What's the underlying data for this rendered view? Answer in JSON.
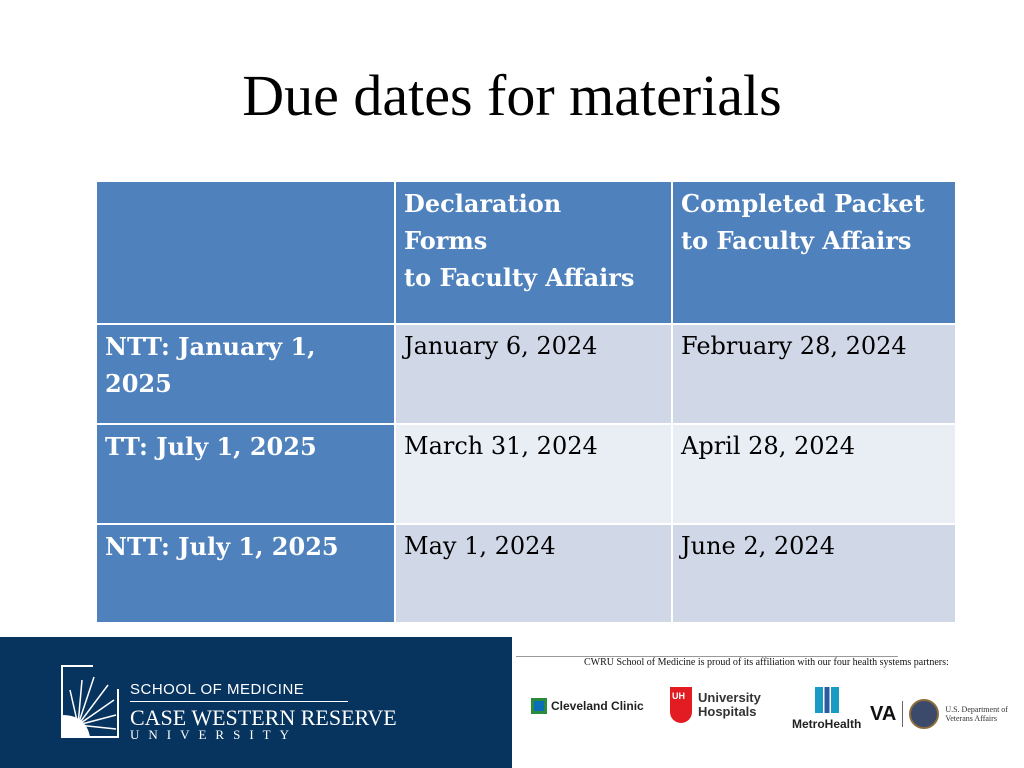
{
  "title": "Due dates for materials",
  "table": {
    "headers": [
      "",
      "Declaration Forms to Faculty Affairs",
      "Completed Packet to Faculty Affairs"
    ],
    "header_lines": {
      "declaration": [
        "Declaration",
        "Forms",
        "to Faculty Affairs"
      ],
      "packet": [
        "Completed Packet",
        "to Faculty Affairs"
      ]
    },
    "rows": [
      {
        "label": "NTT: January 1, 2025",
        "declaration": "January 6, 2024",
        "packet": "February 28, 2024"
      },
      {
        "label": "TT: July 1, 2025",
        "declaration": "March 31, 2024",
        "packet": "April 28, 2024"
      },
      {
        "label": "NTT: July 1, 2025",
        "declaration": "May 1, 2024",
        "packet": "June 2, 2024"
      }
    ]
  },
  "footer": {
    "school": "SCHOOL OF MEDICINE",
    "university": "CASE WESTERN RESERVE",
    "university_sub": "UNIVERSITY",
    "affiliation": "CWRU School of Medicine is proud of its affiliation with our four health systems partners:",
    "partners": [
      "Cleveland Clinic",
      "University Hospitals",
      "MetroHealth",
      "VA",
      "U.S. Department of Veterans Affairs"
    ]
  },
  "colors": {
    "header": "#4f81bd",
    "row_dark": "#d0d8e8",
    "row_light": "#e9edf4",
    "footer": "#06345f"
  }
}
